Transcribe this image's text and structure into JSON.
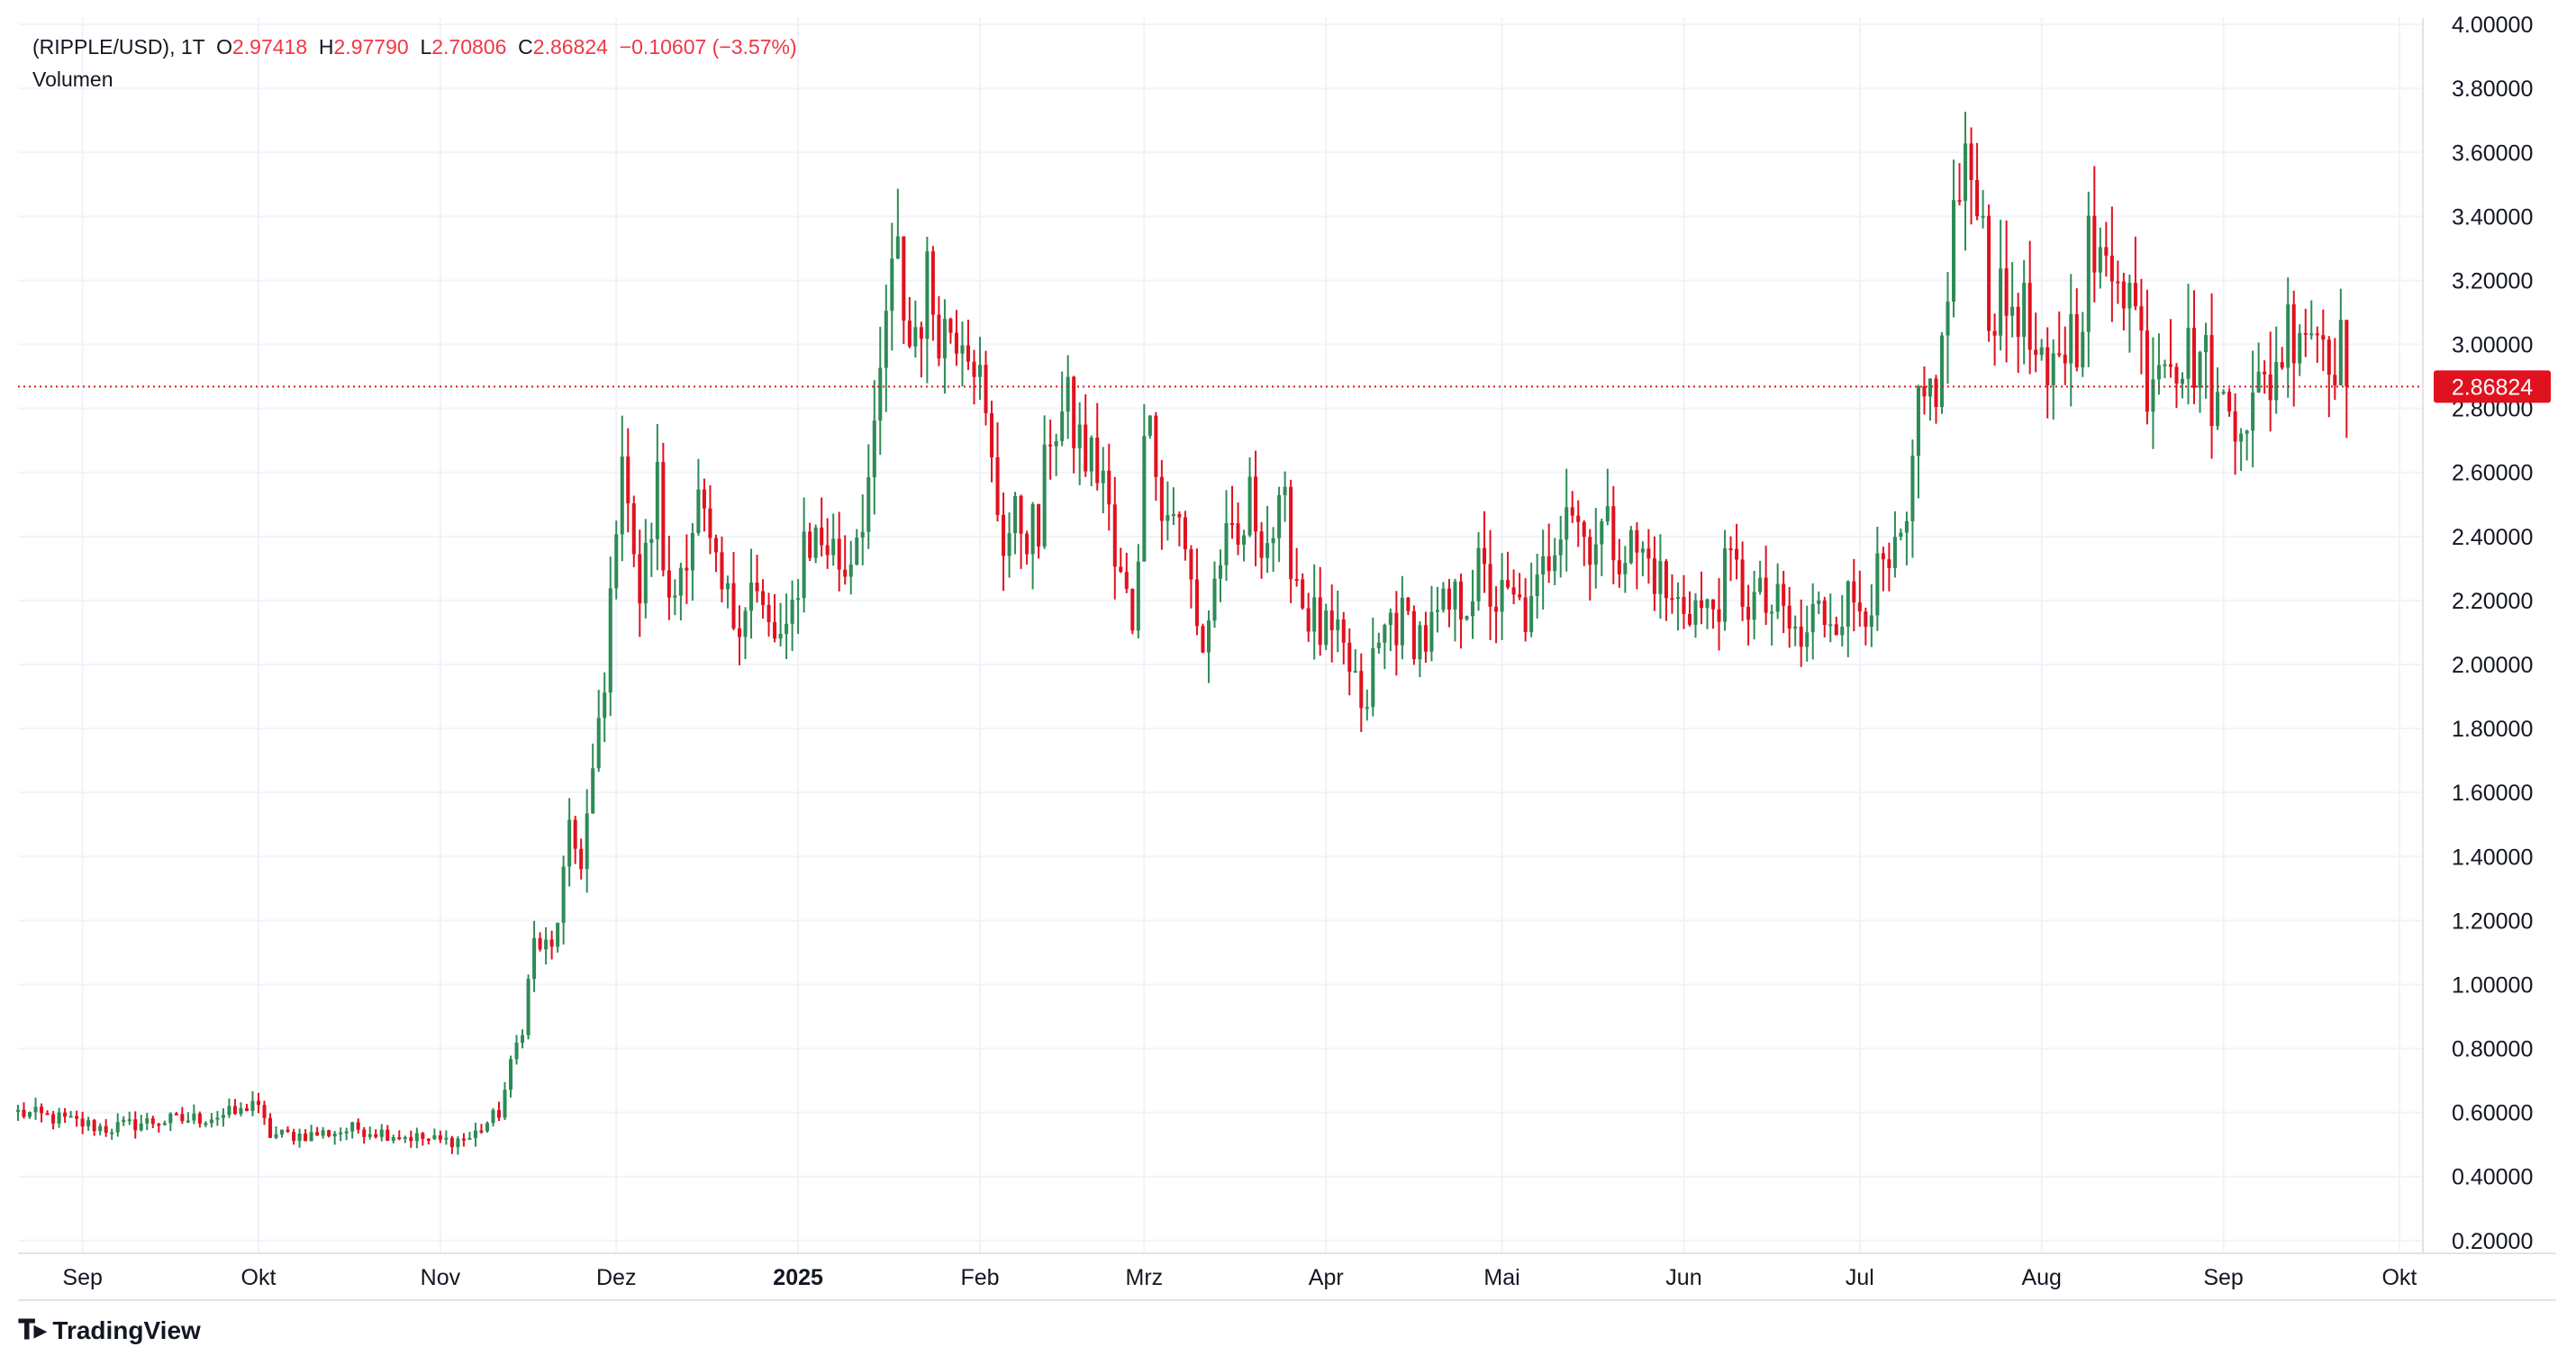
{
  "legend": {
    "symbol": "(RIPPLE/USD), 1T",
    "o_label": "O",
    "o_value": "2.97418",
    "h_label": "H",
    "h_value": "2.97790",
    "l_label": "L",
    "l_value": "2.70806",
    "c_label": "C",
    "c_value": "2.86824",
    "change": "−0.10607 (−3.57%)",
    "volume_label": "Volumen"
  },
  "logo": {
    "text": "TradingView",
    "icon": "tradingview-logo-icon"
  },
  "colors": {
    "up": "#2e8b57",
    "down": "#e0121f",
    "grid": "#f0f3fa",
    "text": "#131722",
    "price_line": "#e0121f"
  },
  "chart_data": {
    "type": "candlestick",
    "yticks": [
      "4.00000",
      "3.80000",
      "3.60000",
      "3.40000",
      "3.20000",
      "3.00000",
      "2.80000",
      "2.60000",
      "2.40000",
      "2.20000",
      "2.00000",
      "1.80000",
      "1.60000",
      "1.40000",
      "1.20000",
      "1.00000",
      "0.80000",
      "0.60000",
      "0.40000",
      "0.20000"
    ],
    "ylim": [
      0.16,
      4.02
    ],
    "xlim": [
      "2024-08-21",
      "2025-10-05"
    ],
    "xticks": [
      {
        "label": "Sep",
        "date": "2024-09-01",
        "bold": false
      },
      {
        "label": "Okt",
        "date": "2024-10-01",
        "bold": false
      },
      {
        "label": "Nov",
        "date": "2024-11-01",
        "bold": false
      },
      {
        "label": "Dez",
        "date": "2024-12-01",
        "bold": false
      },
      {
        "label": "2025",
        "date": "2025-01-01",
        "bold": true
      },
      {
        "label": "Feb",
        "date": "2025-02-01",
        "bold": false
      },
      {
        "label": "Mrz",
        "date": "2025-03-01",
        "bold": false
      },
      {
        "label": "Apr",
        "date": "2025-04-01",
        "bold": false
      },
      {
        "label": "Mai",
        "date": "2025-05-01",
        "bold": false
      },
      {
        "label": "Jun",
        "date": "2025-06-01",
        "bold": false
      },
      {
        "label": "Jul",
        "date": "2025-07-01",
        "bold": false
      },
      {
        "label": "Aug",
        "date": "2025-08-01",
        "bold": false
      },
      {
        "label": "Sep",
        "date": "2025-09-01",
        "bold": false
      },
      {
        "label": "Okt",
        "date": "2025-10-01",
        "bold": false
      }
    ],
    "last_price": 2.86824,
    "last_price_label": "2.86824",
    "start_date": "2024-08-21",
    "close_path": [
      [
        "2024-08-21",
        0.6
      ],
      [
        "2024-08-28",
        0.58
      ],
      [
        "2024-09-05",
        0.55
      ],
      [
        "2024-09-12",
        0.57
      ],
      [
        "2024-09-20",
        0.58
      ],
      [
        "2024-09-28",
        0.6
      ],
      [
        "2024-09-30",
        0.64
      ],
      [
        "2024-10-03",
        0.53
      ],
      [
        "2024-10-10",
        0.53
      ],
      [
        "2024-10-18",
        0.55
      ],
      [
        "2024-10-25",
        0.53
      ],
      [
        "2024-11-01",
        0.51
      ],
      [
        "2024-11-06",
        0.52
      ],
      [
        "2024-11-11",
        0.6
      ],
      [
        "2024-11-15",
        0.88
      ],
      [
        "2024-11-17",
        1.13
      ],
      [
        "2024-11-20",
        1.1
      ],
      [
        "2024-11-23",
        1.45
      ],
      [
        "2024-11-25",
        1.4
      ],
      [
        "2024-11-29",
        1.9
      ],
      [
        "2024-12-01",
        2.5
      ],
      [
        "2024-12-03",
        2.6
      ],
      [
        "2024-12-05",
        2.2
      ],
      [
        "2024-12-08",
        2.55
      ],
      [
        "2024-12-10",
        2.15
      ],
      [
        "2024-12-13",
        2.4
      ],
      [
        "2024-12-15",
        2.5
      ],
      [
        "2024-12-18",
        2.25
      ],
      [
        "2024-12-21",
        2.15
      ],
      [
        "2024-12-24",
        2.25
      ],
      [
        "2024-12-27",
        2.1
      ],
      [
        "2024-12-30",
        2.05
      ],
      [
        "2025-01-02",
        2.4
      ],
      [
        "2025-01-06",
        2.38
      ],
      [
        "2025-01-09",
        2.3
      ],
      [
        "2025-01-12",
        2.5
      ],
      [
        "2025-01-14",
        2.65
      ],
      [
        "2025-01-16",
        3.1
      ],
      [
        "2025-01-18",
        3.25
      ],
      [
        "2025-01-20",
        3.0
      ],
      [
        "2025-01-23",
        3.18
      ],
      [
        "2025-01-26",
        3.05
      ],
      [
        "2025-01-29",
        3.1
      ],
      [
        "2025-01-31",
        3.0
      ],
      [
        "2025-02-03",
        2.6
      ],
      [
        "2025-02-05",
        2.4
      ],
      [
        "2025-02-08",
        2.45
      ],
      [
        "2025-02-11",
        2.4
      ],
      [
        "2025-02-13",
        2.75
      ],
      [
        "2025-02-16",
        2.78
      ],
      [
        "2025-02-19",
        2.65
      ],
      [
        "2025-02-22",
        2.6
      ],
      [
        "2025-02-24",
        2.3
      ],
      [
        "2025-02-27",
        2.15
      ],
      [
        "2025-03-02",
        2.9
      ],
      [
        "2025-03-04",
        2.45
      ],
      [
        "2025-03-06",
        2.5
      ],
      [
        "2025-03-09",
        2.25
      ],
      [
        "2025-03-11",
        2.05
      ],
      [
        "2025-03-14",
        2.35
      ],
      [
        "2025-03-17",
        2.35
      ],
      [
        "2025-03-19",
        2.5
      ],
      [
        "2025-03-22",
        2.4
      ],
      [
        "2025-03-25",
        2.45
      ],
      [
        "2025-03-28",
        2.2
      ],
      [
        "2025-03-31",
        2.1
      ],
      [
        "2025-04-03",
        2.05
      ],
      [
        "2025-04-06",
        1.95
      ],
      [
        "2025-04-07",
        1.8
      ],
      [
        "2025-04-09",
        2.0
      ],
      [
        "2025-04-12",
        2.15
      ],
      [
        "2025-04-15",
        2.12
      ],
      [
        "2025-04-18",
        2.08
      ],
      [
        "2025-04-21",
        2.15
      ],
      [
        "2025-04-24",
        2.2
      ],
      [
        "2025-04-27",
        2.28
      ],
      [
        "2025-04-30",
        2.2
      ],
      [
        "2025-05-03",
        2.18
      ],
      [
        "2025-05-06",
        2.15
      ],
      [
        "2025-05-09",
        2.35
      ],
      [
        "2025-05-12",
        2.55
      ],
      [
        "2025-05-15",
        2.4
      ],
      [
        "2025-05-18",
        2.42
      ],
      [
        "2025-05-21",
        2.38
      ],
      [
        "2025-05-24",
        2.35
      ],
      [
        "2025-05-27",
        2.3
      ],
      [
        "2025-05-30",
        2.18
      ],
      [
        "2025-06-02",
        2.2
      ],
      [
        "2025-06-05",
        2.15
      ],
      [
        "2025-06-09",
        2.3
      ],
      [
        "2025-06-12",
        2.2
      ],
      [
        "2025-06-15",
        2.18
      ],
      [
        "2025-06-18",
        2.15
      ],
      [
        "2025-06-21",
        2.05
      ],
      [
        "2025-06-23",
        2.15
      ],
      [
        "2025-06-27",
        2.18
      ],
      [
        "2025-07-01",
        2.2
      ],
      [
        "2025-07-04",
        2.25
      ],
      [
        "2025-07-07",
        2.3
      ],
      [
        "2025-07-09",
        2.4
      ],
      [
        "2025-07-11",
        2.75
      ],
      [
        "2025-07-13",
        2.85
      ],
      [
        "2025-07-15",
        2.95
      ],
      [
        "2025-07-17",
        3.4
      ],
      [
        "2025-07-19",
        3.5
      ],
      [
        "2025-07-21",
        3.55
      ],
      [
        "2025-07-23",
        3.15
      ],
      [
        "2025-07-25",
        3.1
      ],
      [
        "2025-07-28",
        3.15
      ],
      [
        "2025-07-30",
        3.0
      ],
      [
        "2025-08-02",
        2.8
      ],
      [
        "2025-08-04",
        3.0
      ],
      [
        "2025-08-07",
        3.05
      ],
      [
        "2025-08-09",
        3.3
      ],
      [
        "2025-08-11",
        3.2
      ],
      [
        "2025-08-14",
        3.3
      ],
      [
        "2025-08-17",
        3.1
      ],
      [
        "2025-08-19",
        2.9
      ],
      [
        "2025-08-22",
        3.05
      ],
      [
        "2025-08-25",
        2.95
      ],
      [
        "2025-08-28",
        2.98
      ],
      [
        "2025-08-31",
        2.8
      ],
      [
        "2025-09-03",
        2.82
      ],
      [
        "2025-09-06",
        2.8
      ],
      [
        "2025-09-09",
        2.9
      ],
      [
        "2025-09-12",
        3.05
      ],
      [
        "2025-09-14",
        3.1
      ],
      [
        "2025-09-17",
        3.05
      ],
      [
        "2025-09-19",
        3.02
      ],
      [
        "2025-09-21",
        2.97
      ],
      [
        "2025-09-22",
        2.87
      ]
    ]
  }
}
